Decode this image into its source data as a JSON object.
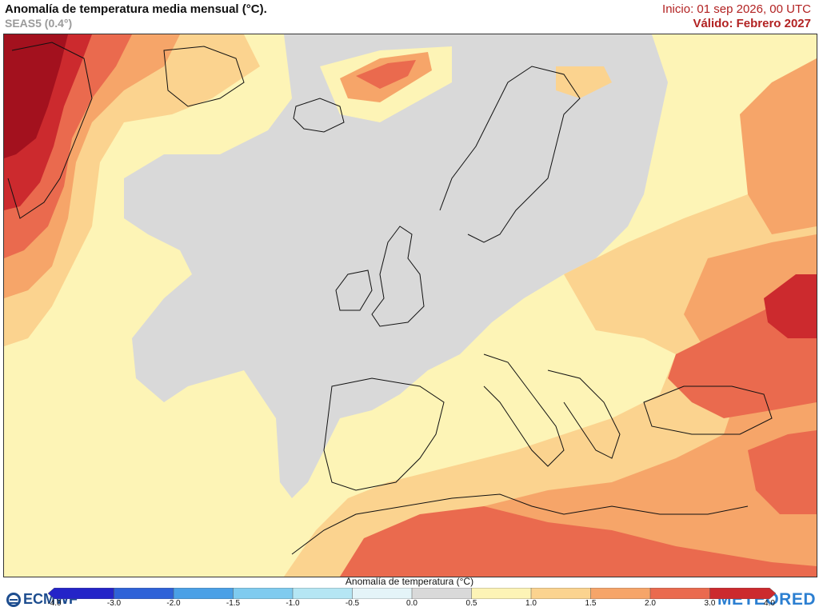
{
  "header": {
    "title": "Anomalía de temperatura media mensual (°C).",
    "subtitle": "SEAS5 (0.4°)",
    "init": "Inicio: 01 sep 2026, 00 UTC",
    "valid": "Válido: Febrero 2027"
  },
  "logos": {
    "left": "ECMWF",
    "right": "METEORED"
  },
  "legend": {
    "title": "Anomalía de temperatura (°C)",
    "ticks": [
      "-4.0",
      "-3.0",
      "-2.0",
      "-1.5",
      "-1.0",
      "-0.5",
      "0.0",
      "0.5",
      "1.0",
      "1.5",
      "2.0",
      "3.0",
      "4.0"
    ],
    "colors": [
      "#2424c8",
      "#2e62d8",
      "#4aa0e6",
      "#7fcbef",
      "#b5e6f4",
      "#e4f4f8",
      "#d9d9d9",
      "#fdf4b6",
      "#fbd38f",
      "#f6a569",
      "#ea6a4e",
      "#cc2a2e"
    ]
  },
  "map_colors": {
    "neutral": "#d9d9d9",
    "warm_0_5": "#fdf4b6",
    "warm_1_0": "#fbd38f",
    "warm_1_5": "#f6a569",
    "warm_2_0": "#ea6a4e",
    "warm_3_0": "#cc2a2e",
    "warm_4_0": "#a3111e"
  }
}
